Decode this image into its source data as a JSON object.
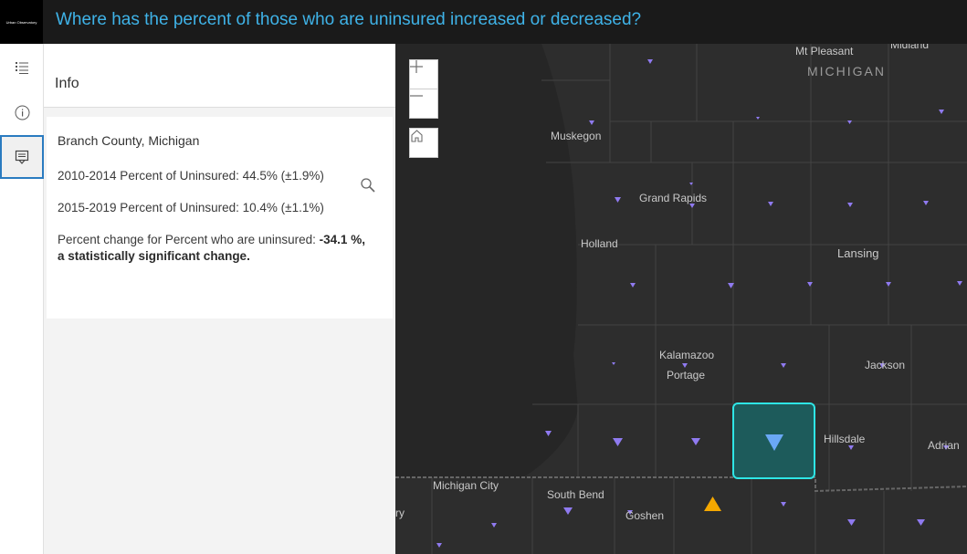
{
  "header": {
    "logo_text": "Urban Observatory",
    "title": "Where has the percent of those who are uninsured increased or decreased?"
  },
  "rail": {
    "items": [
      {
        "icon": "list-icon"
      },
      {
        "icon": "info-icon"
      },
      {
        "icon": "popup-icon"
      }
    ]
  },
  "panel": {
    "title": "Info",
    "feature": {
      "name": "Branch County, Michigan",
      "line1": "2010-2014 Percent of Uninsured: 44.5% (±1.9%)",
      "line2": "2015-2019 Percent of Uninsured: 10.4% (±1.1%)",
      "change_prefix": "Percent change for Percent who are uninsured: ",
      "change_bold": "-34.1 %, a statistically significant change."
    }
  },
  "map": {
    "state_label": "MICHIGAN",
    "places": [
      "Mt Pleasant",
      "Midland",
      "Muskegon",
      "Grand Rapids",
      "Holland",
      "Lansing",
      "Kalamazoo",
      "Portage",
      "Jackson",
      "Hillsdale",
      "Adrian",
      "Michigan City",
      "South Bend",
      "Goshen",
      "ry"
    ],
    "colors": {
      "decrease": "#8f7af0",
      "increase": "#f5a800",
      "selected_fill": "#1d5b5b",
      "selected_border": "#2ee6e6",
      "selected_symbol": "#6aa8f5"
    }
  }
}
